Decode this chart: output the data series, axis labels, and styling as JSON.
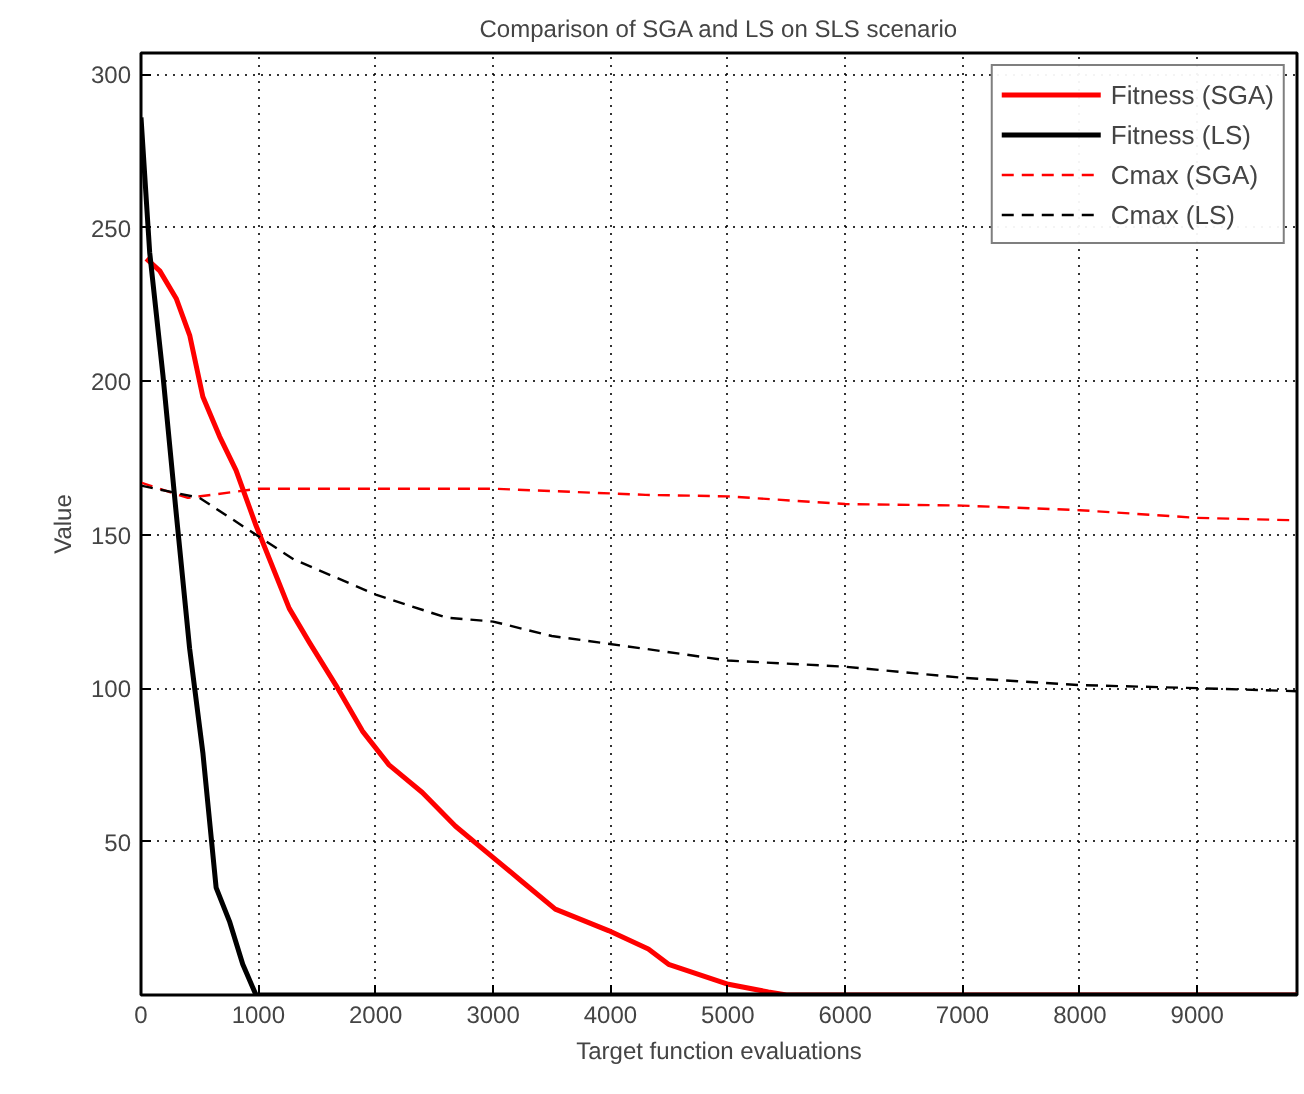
{
  "chart_data": {
    "type": "line",
    "title": "Comparison of SGA and LS on SLS scenario",
    "xlabel": "Target function evaluations",
    "ylabel": "Value",
    "xlim": [
      0,
      9850
    ],
    "ylim": [
      0,
      307
    ],
    "xticks": [
      0,
      1000,
      2000,
      3000,
      4000,
      5000,
      6000,
      7000,
      8000,
      9000
    ],
    "yticks": [
      50,
      100,
      150,
      200,
      250,
      300
    ],
    "grid": true,
    "legend": "top right",
    "marker": "none",
    "series": [
      {
        "name": "Fitness (SGA)",
        "color": "#ff0000",
        "line_style": "solid",
        "x": [
          45,
          160,
          300,
          415,
          527,
          670,
          810,
          980,
          1263,
          1433,
          1660,
          1887,
          2113,
          2397,
          2680,
          2963,
          3246,
          3530,
          3983,
          4323,
          4495,
          5005,
          5345,
          5500,
          9850
        ],
        "values": [
          240,
          236,
          227,
          215,
          195,
          182,
          171,
          153,
          126,
          115,
          101,
          86,
          75,
          66,
          55,
          46,
          37,
          28,
          21,
          15,
          10,
          3.5,
          1,
          0,
          0
        ]
      },
      {
        "name": "Fitness (LS)",
        "color": "#000000",
        "line_style": "solid",
        "x": [
          0,
          74,
          187,
          300,
          414,
          527,
          640,
          754,
          867,
          980,
          9850
        ],
        "values": [
          286,
          242,
          202,
          157,
          113,
          79,
          35,
          24,
          10,
          0,
          0
        ]
      },
      {
        "name": "Cmax (SGA)",
        "color": "#ff0000",
        "line_style": "dashed",
        "x": [
          0,
          400,
          1000,
          2000,
          3000,
          4300,
          5000,
          6000,
          7000,
          8000,
          9000,
          9850
        ],
        "values": [
          167,
          162,
          165,
          165,
          165,
          163,
          162.5,
          160,
          159.5,
          158,
          155.5,
          154.7
        ]
      },
      {
        "name": "Cmax (LS)",
        "color": "#000000",
        "line_style": "dashed",
        "x": [
          0,
          500,
          1000,
          1300,
          2000,
          2600,
          3000,
          3500,
          4300,
          5000,
          6000,
          7000,
          8000,
          9000,
          9850
        ],
        "values": [
          166,
          162,
          149.5,
          142,
          130.5,
          123,
          121.7,
          117,
          112.8,
          109,
          107,
          103.4,
          101,
          100,
          99
        ]
      }
    ]
  }
}
